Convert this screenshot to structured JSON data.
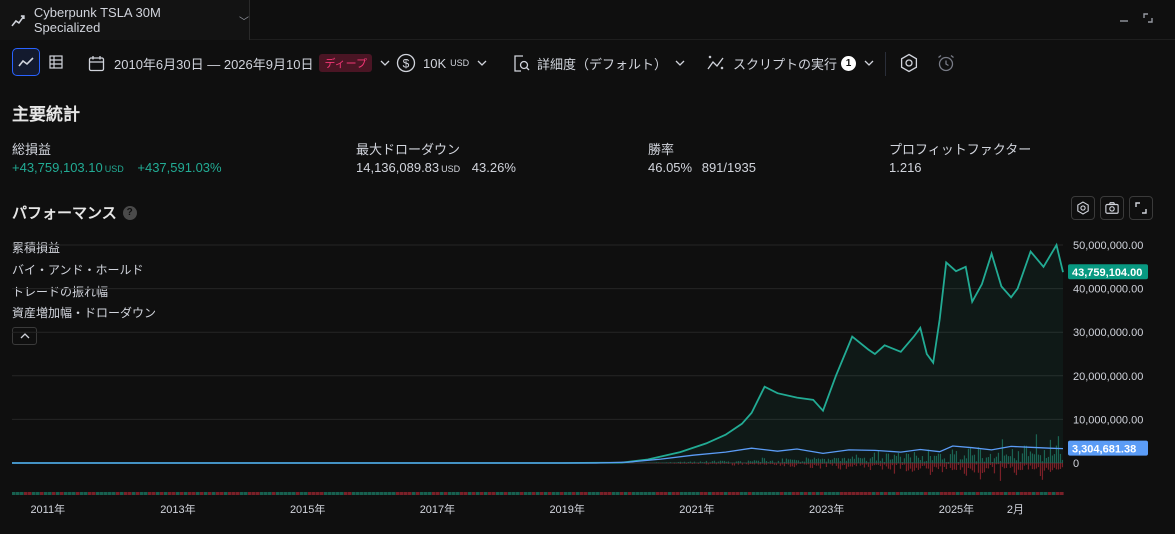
{
  "tab": {
    "title": "Cyberpunk TSLA 30M Specialized"
  },
  "toolbar": {
    "date_range": "2010年6月30日 — 2026年9月10日",
    "deep_badge": "ディープ",
    "capital": "10K",
    "capital_currency": "USD",
    "detail": "詳細度（デフォルト）",
    "script_run": "スクリプトの実行",
    "script_count": "1"
  },
  "stats": {
    "title": "主要統計",
    "net_profit": {
      "label": "総損益",
      "value": "+43,759,103.10",
      "currency": "USD",
      "percent": "+437,591.03%"
    },
    "max_drawdown": {
      "label": "最大ドローダウン",
      "value": "14,136,089.83",
      "currency": "USD",
      "percent": "43.26%"
    },
    "win_rate": {
      "label": "勝率",
      "value": "46.05%",
      "ratio": "891/1935"
    },
    "profit_factor": {
      "label": "プロフィットファクター",
      "value": "1.216"
    }
  },
  "performance": {
    "title": "パフォーマンス",
    "legend": [
      "累積損益",
      "バイ・アンド・ホールド",
      "トレードの振れ幅",
      "資産増加幅・ドローダウン"
    ]
  },
  "chart_data": {
    "type": "line",
    "ylim": [
      0,
      50000000
    ],
    "y_ticks": [
      "50,000,000.00",
      "40,000,000.00",
      "30,000,000.00",
      "20,000,000.00",
      "10,000,000.00",
      "0"
    ],
    "x_ticks": [
      "2011年",
      "2013年",
      "2015年",
      "2017年",
      "2019年",
      "2021年",
      "2023年",
      "2025年",
      "2月"
    ],
    "last_value_labels": {
      "cumulative_pnl": "43,759,104.00",
      "buy_and_hold": "3,304,681.38"
    },
    "series": [
      {
        "name": "累積損益",
        "color": "#22ab94",
        "x": [
          2010.5,
          2012,
          2014,
          2016,
          2018,
          2019,
          2019.9,
          2020.3,
          2020.8,
          2021.2,
          2021.5,
          2021.75,
          2021.9,
          2022.1,
          2022.3,
          2022.6,
          2022.85,
          2023.0,
          2023.2,
          2023.45,
          2023.7,
          2023.8,
          2023.95,
          2024.2,
          2024.4,
          2024.5,
          2024.6,
          2024.7,
          2024.8,
          2024.9,
          2025.05,
          2025.2,
          2025.3,
          2025.45,
          2025.6,
          2025.75,
          2025.9,
          2026.0,
          2026.2,
          2026.4,
          2026.6,
          2026.7
        ],
        "values": [
          0,
          0,
          0,
          0,
          0,
          0,
          100000,
          800000,
          2500000,
          4500000,
          6500000,
          9000000,
          11500000,
          17500000,
          16000000,
          15000000,
          14500000,
          12000000,
          20000000,
          29000000,
          26000000,
          25000000,
          27000000,
          25500000,
          29000000,
          31000000,
          25000000,
          23000000,
          33000000,
          46000000,
          44000000,
          45000000,
          37000000,
          41000000,
          48000000,
          40500000,
          38000000,
          40000000,
          48500000,
          45000000,
          50000000,
          43759104
        ]
      },
      {
        "name": "バイ・アンド・ホールド",
        "color": "#5b9cf6",
        "x": [
          2010.5,
          2012,
          2014,
          2016,
          2018,
          2019.5,
          2020.0,
          2020.5,
          2021.0,
          2021.5,
          2021.9,
          2022.3,
          2022.6,
          2023.0,
          2023.4,
          2023.8,
          2024.2,
          2024.5,
          2024.8,
          2025.0,
          2025.3,
          2025.6,
          2025.9,
          2026.2,
          2026.5,
          2026.7
        ],
        "values": [
          0,
          0,
          0,
          0,
          0,
          0,
          200000,
          900000,
          1800000,
          2500000,
          3400000,
          2700000,
          3200000,
          2200000,
          3000000,
          2900000,
          2500000,
          3100000,
          2600000,
          3900000,
          3500000,
          3000000,
          3800000,
          3600000,
          3400000,
          3304681.38
        ]
      }
    ]
  }
}
